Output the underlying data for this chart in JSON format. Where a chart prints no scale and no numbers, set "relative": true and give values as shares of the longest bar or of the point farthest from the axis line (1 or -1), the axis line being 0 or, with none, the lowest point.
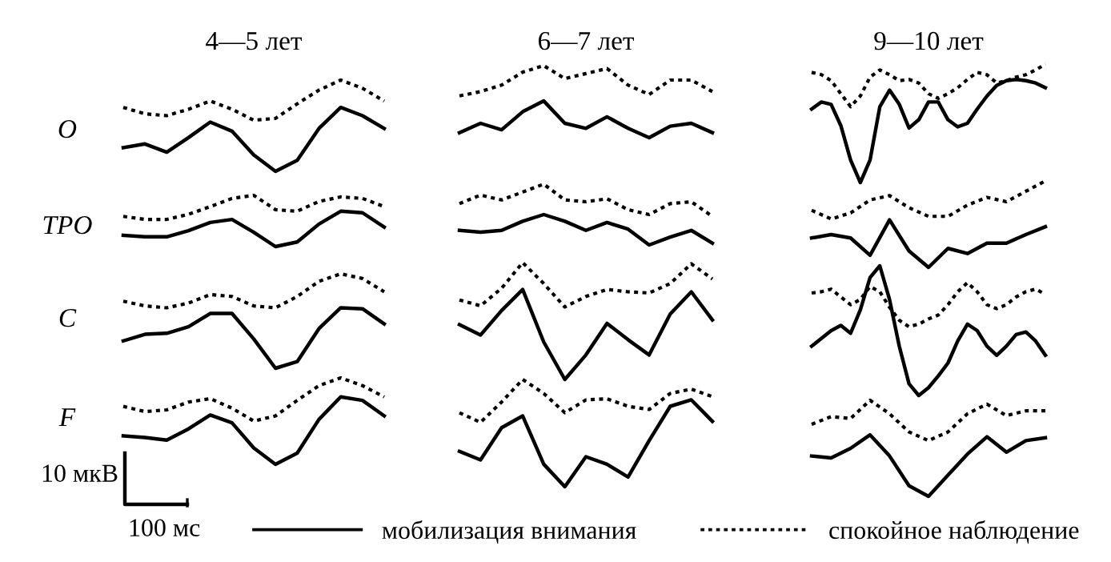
{
  "chart_data": [
    {
      "type": "line",
      "relative": true,
      "title": "4—5 лет",
      "ylabel": "O",
      "legend": "bottom",
      "categories": [
        null,
        null,
        null,
        null,
        null,
        null,
        null,
        null,
        null,
        null,
        null,
        null,
        null
      ],
      "series": [
        {
          "name": "мобилизация внимания",
          "color": "#000000",
          "line_style": "solid",
          "values": [
            0.26,
            0.3,
            0.21,
            0.37,
            0.54,
            0.44,
            0.18,
            0,
            0.12,
            0.47,
            0.7,
            0.61,
            0.47
          ]
        },
        {
          "name": "спокойное наблюдение",
          "color": "#000000",
          "line_style": "dotted",
          "values": [
            0.7,
            0.63,
            0.61,
            0.68,
            0.77,
            0.68,
            0.56,
            0.58,
            0.74,
            0.89,
            1,
            0.91,
            0.77
          ]
        }
      ]
    },
    {
      "type": "line",
      "relative": true,
      "title": "6—7 лет",
      "categories": [
        null,
        null,
        null,
        null,
        null,
        null,
        null,
        null,
        null,
        null,
        null,
        null,
        null
      ],
      "series": [
        {
          "color": "#000000",
          "line_style": "solid",
          "values": [
            0.07,
            0.2,
            0.11,
            0.36,
            0.51,
            0.2,
            0.13,
            0.29,
            0.13,
            0,
            0.16,
            0.2,
            0.07
          ]
        },
        {
          "color": "#000000",
          "line_style": "dotted",
          "values": [
            0.58,
            0.64,
            0.73,
            0.91,
            1,
            0.82,
            0.89,
            0.96,
            0.73,
            0.6,
            0.8,
            0.8,
            0.64
          ]
        }
      ]
    },
    {
      "type": "line",
      "relative": true,
      "title": "9—10 лет",
      "categories": [
        null,
        null,
        null,
        null,
        null,
        null,
        null,
        null,
        null,
        null,
        null,
        null,
        null,
        null,
        null,
        null,
        null,
        null,
        null,
        null,
        null,
        null,
        null,
        null,
        null
      ],
      "series": [
        {
          "color": "#000000",
          "line_style": "solid",
          "values": [
            0.62,
            0.68,
            0.66,
            0.48,
            0.19,
            0,
            0.19,
            0.64,
            0.78,
            0.66,
            0.46,
            0.53,
            0.68,
            0.68,
            0.53,
            0.47,
            0.5,
            0.62,
            0.73,
            0.82,
            0.86,
            0.87,
            0.86,
            0.84,
            0.8
          ]
        },
        {
          "color": "#000000",
          "line_style": "dotted",
          "values": [
            0.93,
            0.91,
            0.86,
            0.75,
            0.64,
            0.73,
            0.89,
            0.95,
            0.91,
            0.86,
            0.87,
            0.84,
            0.75,
            0.71,
            0.75,
            0.8,
            0.87,
            0.93,
            0.91,
            0.84,
            0.86,
            0.89,
            0.91,
            0.95,
            1
          ]
        }
      ]
    },
    {
      "type": "line",
      "relative": true,
      "ylabel": "TPO",
      "categories": [
        null,
        null,
        null,
        null,
        null,
        null,
        null,
        null,
        null,
        null,
        null,
        null,
        null
      ],
      "series": [
        {
          "color": "#000000",
          "line_style": "solid",
          "values": [
            0.22,
            0.19,
            0.19,
            0.31,
            0.47,
            0.53,
            0.28,
            0,
            0.09,
            0.44,
            0.69,
            0.66,
            0.38
          ]
        },
        {
          "color": "#000000",
          "line_style": "dotted",
          "values": [
            0.59,
            0.53,
            0.53,
            0.63,
            0.78,
            0.94,
            1,
            0.72,
            0.69,
            0.88,
            0.97,
            0.94,
            0.78
          ]
        }
      ]
    },
    {
      "type": "line",
      "relative": true,
      "categories": [
        null,
        null,
        null,
        null,
        null,
        null,
        null,
        null,
        null,
        null,
        null,
        null,
        null
      ],
      "series": [
        {
          "color": "#000000",
          "line_style": "solid",
          "values": [
            0.24,
            0.21,
            0.24,
            0.39,
            0.5,
            0.39,
            0.24,
            0.37,
            0.26,
            0,
            0.13,
            0.24,
            0.03
          ]
        },
        {
          "color": "#000000",
          "line_style": "dotted",
          "values": [
            0.68,
            0.82,
            0.74,
            0.87,
            1,
            0.74,
            0.71,
            0.76,
            0.58,
            0.5,
            0.68,
            0.71,
            0.47
          ]
        }
      ]
    },
    {
      "type": "line",
      "relative": true,
      "categories": [
        null,
        null,
        null,
        null,
        null,
        null,
        null,
        null,
        null,
        null,
        null,
        null,
        null
      ],
      "series": [
        {
          "color": "#000000",
          "line_style": "solid",
          "values": [
            0.34,
            0.38,
            0.34,
            0.14,
            0.55,
            0.19,
            0,
            0.22,
            0.16,
            0.28,
            0.28,
            0.38,
            0.47
          ]
        },
        {
          "color": "#000000",
          "line_style": "dotted",
          "values": [
            0.66,
            0.56,
            0.63,
            0.78,
            0.83,
            0.69,
            0.59,
            0.59,
            0.72,
            0.81,
            0.76,
            0.88,
            1
          ]
        }
      ]
    },
    {
      "type": "line",
      "relative": true,
      "ylabel": "C",
      "categories": [
        null,
        null,
        null,
        null,
        null,
        null,
        null,
        null,
        null,
        null,
        null,
        null,
        null
      ],
      "series": [
        {
          "color": "#000000",
          "line_style": "solid",
          "values": [
            0.29,
            0.36,
            0.37,
            0.44,
            0.58,
            0.58,
            0.31,
            0,
            0.07,
            0.42,
            0.64,
            0.63,
            0.47
          ]
        },
        {
          "color": "#000000",
          "line_style": "dotted",
          "values": [
            0.71,
            0.66,
            0.64,
            0.69,
            0.78,
            0.76,
            0.66,
            0.64,
            0.76,
            0.92,
            1,
            0.95,
            0.81
          ]
        }
      ]
    },
    {
      "type": "line",
      "relative": true,
      "categories": [
        null,
        null,
        null,
        null,
        null,
        null,
        null,
        null,
        null,
        null,
        null,
        null,
        null
      ],
      "series": [
        {
          "color": "#000000",
          "line_style": "solid",
          "values": [
            0.47,
            0.38,
            0.59,
            0.77,
            0.32,
            0,
            0.21,
            0.48,
            0.34,
            0.21,
            0.56,
            0.75,
            0.51
          ]
        },
        {
          "color": "#000000",
          "line_style": "dotted",
          "values": [
            0.68,
            0.63,
            0.78,
            1,
            0.82,
            0.62,
            0.71,
            0.77,
            0.75,
            0.74,
            0.82,
            0.99,
            0.86
          ]
        }
      ]
    },
    {
      "type": "line",
      "relative": true,
      "categories": [
        null,
        null,
        null,
        null,
        null,
        null,
        null,
        null,
        null,
        null,
        null,
        null,
        null,
        null,
        null,
        null,
        null,
        null,
        null,
        null,
        null,
        null,
        null,
        null,
        null
      ],
      "series": [
        {
          "color": "#000000",
          "line_style": "solid",
          "values": [
            0.38,
            0.44,
            0.5,
            0.54,
            0.48,
            0.66,
            0.91,
            1,
            0.74,
            0.38,
            0.09,
            0,
            0.06,
            0.15,
            0.25,
            0.42,
            0.55,
            0.5,
            0.38,
            0.31,
            0.38,
            0.47,
            0.49,
            0.42,
            0.31
          ]
        },
        {
          "color": "#000000",
          "line_style": "dotted",
          "values": [
            0.79,
            0.8,
            0.82,
            0.76,
            0.7,
            0.74,
            0.84,
            0.8,
            0.68,
            0.58,
            0.53,
            0.55,
            0.59,
            0.62,
            0.7,
            0.8,
            0.87,
            0.8,
            0.7,
            0.67,
            0.7,
            0.76,
            0.8,
            0.82,
            0.78
          ]
        }
      ]
    },
    {
      "type": "line",
      "relative": true,
      "ylabel": "F",
      "annotations": [
        "10 мкВ",
        "100 мс"
      ],
      "categories": [
        null,
        null,
        null,
        null,
        null,
        null,
        null,
        null,
        null,
        null,
        null,
        null,
        null
      ],
      "series": [
        {
          "color": "#000000",
          "line_style": "solid",
          "values": [
            0.33,
            0.31,
            0.28,
            0.41,
            0.57,
            0.48,
            0.19,
            0,
            0.13,
            0.52,
            0.78,
            0.74,
            0.56
          ]
        },
        {
          "color": "#000000",
          "line_style": "dotted",
          "values": [
            0.67,
            0.61,
            0.63,
            0.72,
            0.76,
            0.65,
            0.5,
            0.56,
            0.74,
            0.91,
            1,
            0.91,
            0.78
          ]
        }
      ]
    },
    {
      "type": "line",
      "relative": true,
      "categories": [
        null,
        null,
        null,
        null,
        null,
        null,
        null,
        null,
        null,
        null,
        null,
        null,
        null
      ],
      "series": [
        {
          "color": "#000000",
          "line_style": "solid",
          "values": [
            0.33,
            0.25,
            0.55,
            0.66,
            0.21,
            0,
            0.28,
            0.21,
            0.09,
            0.43,
            0.75,
            0.81,
            0.61
          ]
        },
        {
          "color": "#000000",
          "line_style": "dotted",
          "values": [
            0.69,
            0.6,
            0.79,
            1,
            0.87,
            0.69,
            0.81,
            0.82,
            0.75,
            0.72,
            0.87,
            0.91,
            0.84
          ]
        }
      ]
    },
    {
      "type": "line",
      "relative": true,
      "categories": [
        null,
        null,
        null,
        null,
        null,
        null,
        null,
        null,
        null,
        null,
        null,
        null,
        null
      ],
      "series": [
        {
          "color": "#000000",
          "line_style": "solid",
          "values": [
            0.42,
            0.4,
            0.5,
            0.64,
            0.42,
            0.11,
            0,
            0.22,
            0.44,
            0.62,
            0.46,
            0.58,
            0.61
          ]
        },
        {
          "color": "#000000",
          "line_style": "dotted",
          "values": [
            0.75,
            0.83,
            0.81,
            1,
            0.86,
            0.67,
            0.58,
            0.67,
            0.86,
            0.96,
            0.84,
            0.89,
            0.89
          ]
        }
      ]
    }
  ]
}
